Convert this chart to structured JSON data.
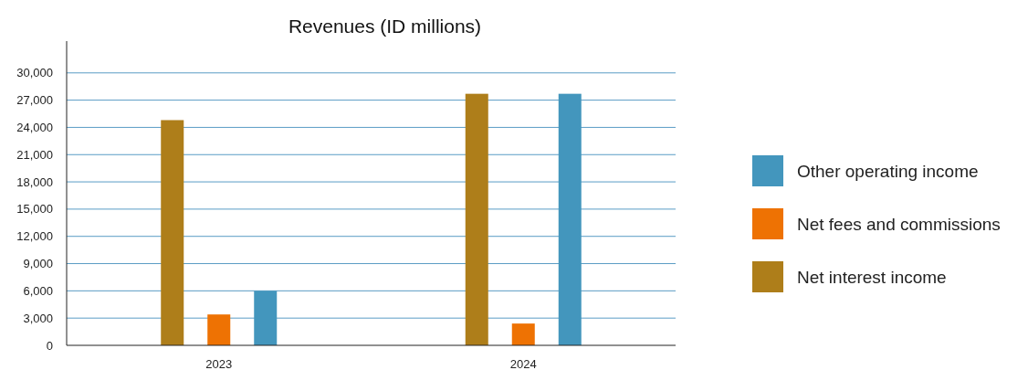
{
  "chart_data": {
    "type": "bar",
    "title": "Revenues (ID millions)",
    "categories": [
      "2023",
      "2024"
    ],
    "series": [
      {
        "name": "Net interest income",
        "color": "#ae7e1a",
        "values": [
          24800,
          27700
        ]
      },
      {
        "name": "Net fees and commissions",
        "color": "#ee7203",
        "values": [
          3400,
          2400
        ]
      },
      {
        "name": "Other operating income",
        "color": "#4396bd",
        "values": [
          6000,
          27700
        ]
      }
    ],
    "ylim": [
      0,
      33500
    ],
    "yticks": [
      0,
      {
        "value": 3000,
        "label": "3,000"
      },
      {
        "value": 6000,
        "label": "6,000"
      },
      {
        "value": 9000,
        "label": "9,000"
      },
      {
        "value": 12000,
        "label": "12,000"
      },
      {
        "value": 15000,
        "label": "15,000"
      },
      {
        "value": 18000,
        "label": "18,000"
      },
      {
        "value": 21000,
        "label": "21,000"
      },
      {
        "value": 24000,
        "label": "24,000"
      },
      {
        "value": 27000,
        "label": "27,000"
      },
      {
        "value": 30000,
        "label": "30,000"
      }
    ],
    "grid": "y",
    "legend": "right"
  }
}
